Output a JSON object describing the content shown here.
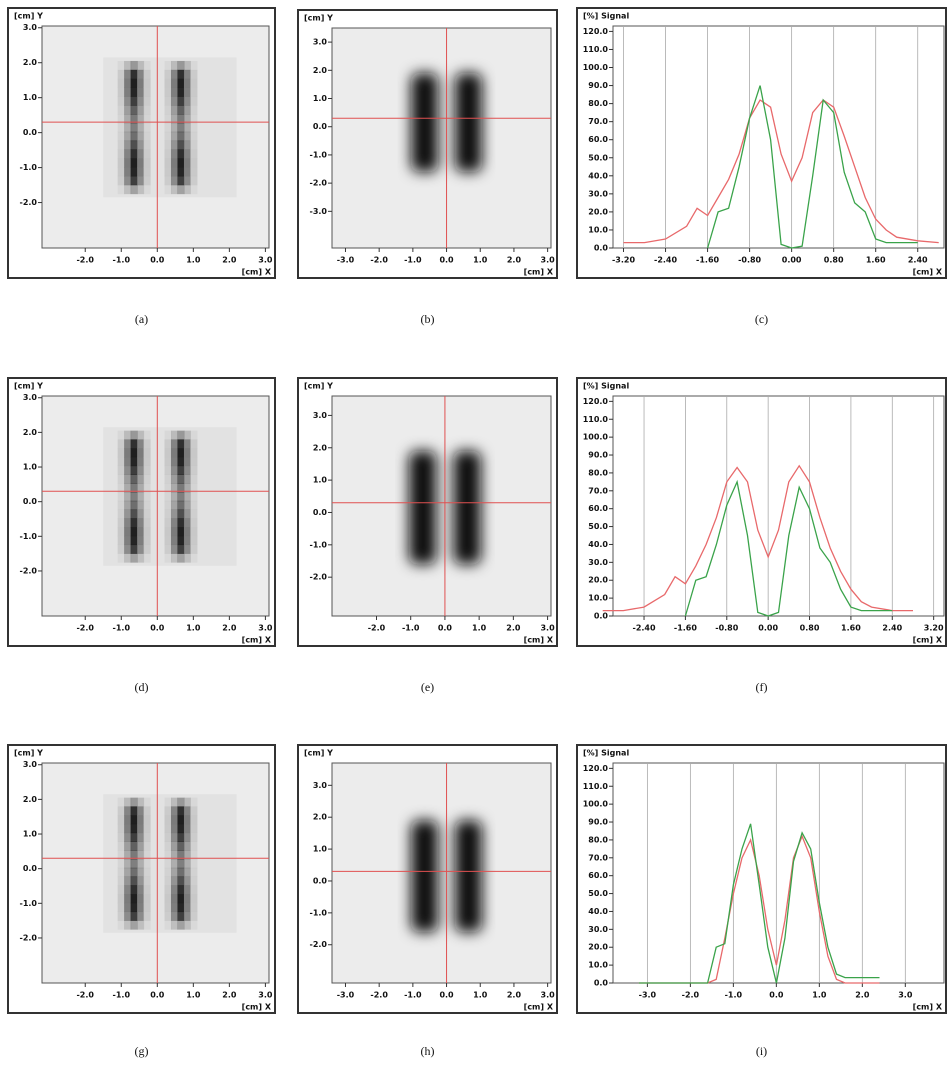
{
  "chart_data": [
    {
      "type": "image",
      "caption": "(a)",
      "xlabel": "[cm] X",
      "ylabel": "[cm] Y",
      "xlim": [
        -3.2,
        3.1
      ],
      "ylim": [
        -3.3,
        3.05
      ],
      "xticks": [
        {
          "value": -2,
          "label": "-2.0"
        },
        {
          "value": -1,
          "label": "-1.0"
        },
        {
          "value": 0,
          "label": "0.0"
        },
        {
          "value": 1,
          "label": "1.0"
        },
        {
          "value": 2,
          "label": "2.0"
        },
        {
          "value": 3,
          "label": "3.0"
        }
      ],
      "yticks": [
        {
          "value": 3,
          "label": "3.0"
        },
        {
          "value": 2,
          "label": "2.0"
        },
        {
          "value": 1,
          "label": "1.0"
        },
        {
          "value": 0,
          "label": "0.0"
        },
        {
          "value": -1,
          "label": "-1.0"
        },
        {
          "value": -2,
          "label": "-2.0"
        }
      ]
    },
    {
      "type": "image",
      "caption": "(b)",
      "xlabel": "[cm] X",
      "ylabel": "[cm] Y",
      "xlim": [
        -3.4,
        3.1
      ],
      "ylim": [
        -4.3,
        3.5
      ],
      "xticks": [
        {
          "value": -3,
          "label": "-3.0"
        },
        {
          "value": -2,
          "label": "-2.0"
        },
        {
          "value": -1,
          "label": "-1.0"
        },
        {
          "value": 0,
          "label": "0.0"
        },
        {
          "value": 1,
          "label": "1.0"
        },
        {
          "value": 2,
          "label": "2.0"
        },
        {
          "value": 3,
          "label": "3.0"
        }
      ],
      "yticks": [
        {
          "value": 3,
          "label": "3.0"
        },
        {
          "value": 2,
          "label": "2.0"
        },
        {
          "value": 1,
          "label": "1.0"
        },
        {
          "value": 0,
          "label": "0.0"
        },
        {
          "value": -1,
          "label": "-1.0"
        },
        {
          "value": -2,
          "label": "-2.0"
        },
        {
          "value": -3,
          "label": "-3.0"
        }
      ]
    },
    {
      "type": "line",
      "caption": "(c)",
      "xlabel": "[cm] X",
      "ylabel": "[%] Signal",
      "grid": "x",
      "xlim": [
        -3.4,
        2.9
      ],
      "ylim": [
        0,
        123
      ],
      "xticks": [
        {
          "value": -3.2,
          "label": "-3.20"
        },
        {
          "value": -2.4,
          "label": "-2.40"
        },
        {
          "value": -1.6,
          "label": "-1.60"
        },
        {
          "value": -0.8,
          "label": "-0.80"
        },
        {
          "value": 0,
          "label": "0.00"
        },
        {
          "value": 0.8,
          "label": "0.80"
        },
        {
          "value": 1.6,
          "label": "1.60"
        },
        {
          "value": 2.4,
          "label": "2.40"
        }
      ],
      "yticks": [
        {
          "value": 0,
          "label": "0.0"
        },
        {
          "value": 10,
          "label": "10.0"
        },
        {
          "value": 20,
          "label": "20.0"
        },
        {
          "value": 30,
          "label": "30.0"
        },
        {
          "value": 40,
          "label": "40.0"
        },
        {
          "value": 50,
          "label": "50.0"
        },
        {
          "value": 60,
          "label": "60.0"
        },
        {
          "value": 70,
          "label": "70.0"
        },
        {
          "value": 80,
          "label": "80.0"
        },
        {
          "value": 90,
          "label": "90.0"
        },
        {
          "value": 100,
          "label": "100.0"
        },
        {
          "value": 110,
          "label": "110.0"
        },
        {
          "value": 120,
          "label": "120.0"
        }
      ],
      "x": [
        -3.2,
        -2.8,
        -2.4,
        -2.0,
        -1.8,
        -1.6,
        -1.4,
        -1.2,
        -1.0,
        -0.8,
        -0.6,
        -0.4,
        -0.2,
        0,
        0.2,
        0.4,
        0.6,
        0.8,
        1.0,
        1.2,
        1.4,
        1.6,
        1.8,
        2.0,
        2.4,
        2.8
      ],
      "series": [
        {
          "color": "#e8696b",
          "values": [
            3,
            3,
            5,
            12,
            22,
            18,
            28,
            38,
            52,
            72,
            82,
            78,
            52,
            37,
            50,
            75,
            82,
            78,
            62,
            45,
            28,
            16,
            10,
            6,
            4,
            3
          ]
        },
        {
          "color": "#3aa34a",
          "values": [
            null,
            null,
            null,
            null,
            null,
            0,
            20,
            22,
            45,
            72,
            90,
            60,
            2,
            0,
            1,
            40,
            82,
            75,
            42,
            25,
            20,
            5,
            3,
            3,
            3,
            null
          ]
        }
      ]
    },
    {
      "type": "image",
      "caption": "(d)",
      "xlabel": "[cm] X",
      "ylabel": "[cm] Y",
      "xlim": [
        -3.2,
        3.1
      ],
      "ylim": [
        -3.3,
        3.05
      ],
      "xticks": [
        {
          "value": -2,
          "label": "-2.0"
        },
        {
          "value": -1,
          "label": "-1.0"
        },
        {
          "value": 0,
          "label": "0.0"
        },
        {
          "value": 1,
          "label": "1.0"
        },
        {
          "value": 2,
          "label": "2.0"
        },
        {
          "value": 3,
          "label": "3.0"
        }
      ],
      "yticks": [
        {
          "value": 3,
          "label": "3.0"
        },
        {
          "value": 2,
          "label": "2.0"
        },
        {
          "value": 1,
          "label": "1.0"
        },
        {
          "value": 0,
          "label": "0.0"
        },
        {
          "value": -1,
          "label": "-1.0"
        },
        {
          "value": -2,
          "label": "-2.0"
        }
      ]
    },
    {
      "type": "image",
      "caption": "(e)",
      "xlabel": "[cm] X",
      "ylabel": "[cm] Y",
      "xlim": [
        -3.3,
        3.1
      ],
      "ylim": [
        -3.2,
        3.6
      ],
      "xticks": [
        {
          "value": -2,
          "label": "-2.0"
        },
        {
          "value": -1,
          "label": "-1.0"
        },
        {
          "value": 0,
          "label": "0.0"
        },
        {
          "value": 1,
          "label": "1.0"
        },
        {
          "value": 2,
          "label": "2.0"
        },
        {
          "value": 3,
          "label": "3.0"
        }
      ],
      "yticks": [
        {
          "value": 3,
          "label": "3.0"
        },
        {
          "value": 2,
          "label": "2.0"
        },
        {
          "value": 1,
          "label": "1.0"
        },
        {
          "value": 0,
          "label": "0.0"
        },
        {
          "value": -1,
          "label": "-1.0"
        },
        {
          "value": -2,
          "label": "-2.0"
        }
      ]
    },
    {
      "type": "line",
      "caption": "(f)",
      "xlabel": "[cm] X",
      "ylabel": "[%] Signal",
      "grid": "x",
      "xlim": [
        -3.0,
        3.4
      ],
      "ylim": [
        0,
        123
      ],
      "xticks": [
        {
          "value": -2.4,
          "label": "-2.40"
        },
        {
          "value": -1.6,
          "label": "-1.60"
        },
        {
          "value": -0.8,
          "label": "-0.80"
        },
        {
          "value": 0,
          "label": "0.00"
        },
        {
          "value": 0.8,
          "label": "0.80"
        },
        {
          "value": 1.6,
          "label": "1.60"
        },
        {
          "value": 2.4,
          "label": "2.40"
        },
        {
          "value": 3.2,
          "label": "3.20"
        }
      ],
      "yticks": [
        {
          "value": 0,
          "label": "0.0"
        },
        {
          "value": 10,
          "label": "10.0"
        },
        {
          "value": 20,
          "label": "20.0"
        },
        {
          "value": 30,
          "label": "30.0"
        },
        {
          "value": 40,
          "label": "40.0"
        },
        {
          "value": 50,
          "label": "50.0"
        },
        {
          "value": 60,
          "label": "60.0"
        },
        {
          "value": 70,
          "label": "70.0"
        },
        {
          "value": 80,
          "label": "80.0"
        },
        {
          "value": 90,
          "label": "90.0"
        },
        {
          "value": 100,
          "label": "100.0"
        },
        {
          "value": 110,
          "label": "110.0"
        },
        {
          "value": 120,
          "label": "120.0"
        }
      ],
      "x": [
        -3.2,
        -2.8,
        -2.4,
        -2.0,
        -1.8,
        -1.6,
        -1.4,
        -1.2,
        -1.0,
        -0.8,
        -0.6,
        -0.4,
        -0.2,
        0,
        0.2,
        0.4,
        0.6,
        0.8,
        1.0,
        1.2,
        1.4,
        1.6,
        1.8,
        2.0,
        2.4,
        2.8
      ],
      "series": [
        {
          "color": "#e8696b",
          "values": [
            3,
            3,
            5,
            12,
            22,
            18,
            28,
            40,
            55,
            75,
            83,
            75,
            48,
            33,
            48,
            75,
            84,
            75,
            55,
            38,
            25,
            15,
            8,
            5,
            3,
            3
          ]
        },
        {
          "color": "#3aa34a",
          "values": [
            null,
            null,
            null,
            null,
            null,
            0,
            20,
            22,
            40,
            62,
            75,
            45,
            2,
            0,
            2,
            45,
            72,
            60,
            38,
            30,
            15,
            5,
            3,
            3,
            3,
            null
          ]
        }
      ]
    },
    {
      "type": "image",
      "caption": "(g)",
      "xlabel": "[cm] X",
      "ylabel": "[cm] Y",
      "xlim": [
        -3.2,
        3.1
      ],
      "ylim": [
        -3.3,
        3.05
      ],
      "xticks": [
        {
          "value": -2,
          "label": "-2.0"
        },
        {
          "value": -1,
          "label": "-1.0"
        },
        {
          "value": 0,
          "label": "0.0"
        },
        {
          "value": 1,
          "label": "1.0"
        },
        {
          "value": 2,
          "label": "2.0"
        },
        {
          "value": 3,
          "label": "3.0"
        }
      ],
      "yticks": [
        {
          "value": 3,
          "label": "3.0"
        },
        {
          "value": 2,
          "label": "2.0"
        },
        {
          "value": 1,
          "label": "1.0"
        },
        {
          "value": 0,
          "label": "0.0"
        },
        {
          "value": -1,
          "label": "-1.0"
        },
        {
          "value": -2,
          "label": "-2.0"
        }
      ]
    },
    {
      "type": "image",
      "caption": "(h)",
      "xlabel": "[cm] X",
      "ylabel": "[cm] Y",
      "xlim": [
        -3.4,
        3.1
      ],
      "ylim": [
        -3.2,
        3.7
      ],
      "xticks": [
        {
          "value": -3,
          "label": "-3.0"
        },
        {
          "value": -2,
          "label": "-2.0"
        },
        {
          "value": -1,
          "label": "-1.0"
        },
        {
          "value": 0,
          "label": "0.0"
        },
        {
          "value": 1,
          "label": "1.0"
        },
        {
          "value": 2,
          "label": "2.0"
        },
        {
          "value": 3,
          "label": "3.0"
        }
      ],
      "yticks": [
        {
          "value": 3,
          "label": "3.0"
        },
        {
          "value": 2,
          "label": "2.0"
        },
        {
          "value": 1,
          "label": "1.0"
        },
        {
          "value": 0,
          "label": "0.0"
        },
        {
          "value": -1,
          "label": "-1.0"
        },
        {
          "value": -2,
          "label": "-2.0"
        }
      ]
    },
    {
      "type": "line",
      "caption": "(i)",
      "xlabel": "[cm] X",
      "ylabel": "[%] Signal",
      "grid": "x",
      "xlim": [
        -3.8,
        3.9
      ],
      "ylim": [
        0,
        123
      ],
      "xticks": [
        {
          "value": -3,
          "label": "-3.0"
        },
        {
          "value": -2,
          "label": "-2.0"
        },
        {
          "value": -1,
          "label": "-1.0"
        },
        {
          "value": 0,
          "label": "0.0"
        },
        {
          "value": 1,
          "label": "1.0"
        },
        {
          "value": 2,
          "label": "2.0"
        },
        {
          "value": 3,
          "label": "3.0"
        }
      ],
      "yticks": [
        {
          "value": 0,
          "label": "0.0"
        },
        {
          "value": 10,
          "label": "10.0"
        },
        {
          "value": 20,
          "label": "20.0"
        },
        {
          "value": 30,
          "label": "30.0"
        },
        {
          "value": 40,
          "label": "40.0"
        },
        {
          "value": 50,
          "label": "50.0"
        },
        {
          "value": 60,
          "label": "60.0"
        },
        {
          "value": 70,
          "label": "70.0"
        },
        {
          "value": 80,
          "label": "80.0"
        },
        {
          "value": 90,
          "label": "90.0"
        },
        {
          "value": 100,
          "label": "100.0"
        },
        {
          "value": 110,
          "label": "110.0"
        },
        {
          "value": 120,
          "label": "120.0"
        }
      ],
      "x": [
        -3.2,
        -2.8,
        -2.4,
        -2.0,
        -1.8,
        -1.6,
        -1.4,
        -1.2,
        -1.0,
        -0.8,
        -0.6,
        -0.4,
        -0.2,
        0,
        0.2,
        0.4,
        0.6,
        0.8,
        1.0,
        1.2,
        1.4,
        1.6,
        1.8,
        2.0,
        2.4,
        2.8
      ],
      "series": [
        {
          "color": "#e8696b",
          "values": [
            0,
            0,
            0,
            0,
            0,
            0,
            2,
            25,
            50,
            70,
            80,
            60,
            30,
            10,
            35,
            70,
            82,
            70,
            40,
            15,
            2,
            0,
            0,
            0,
            0,
            null
          ]
        },
        {
          "color": "#3aa34a",
          "values": [
            0,
            0,
            0,
            0,
            0,
            0,
            20,
            22,
            55,
            75,
            89,
            55,
            20,
            0,
            25,
            68,
            84,
            75,
            45,
            20,
            5,
            3,
            3,
            3,
            3,
            null
          ]
        }
      ]
    }
  ]
}
